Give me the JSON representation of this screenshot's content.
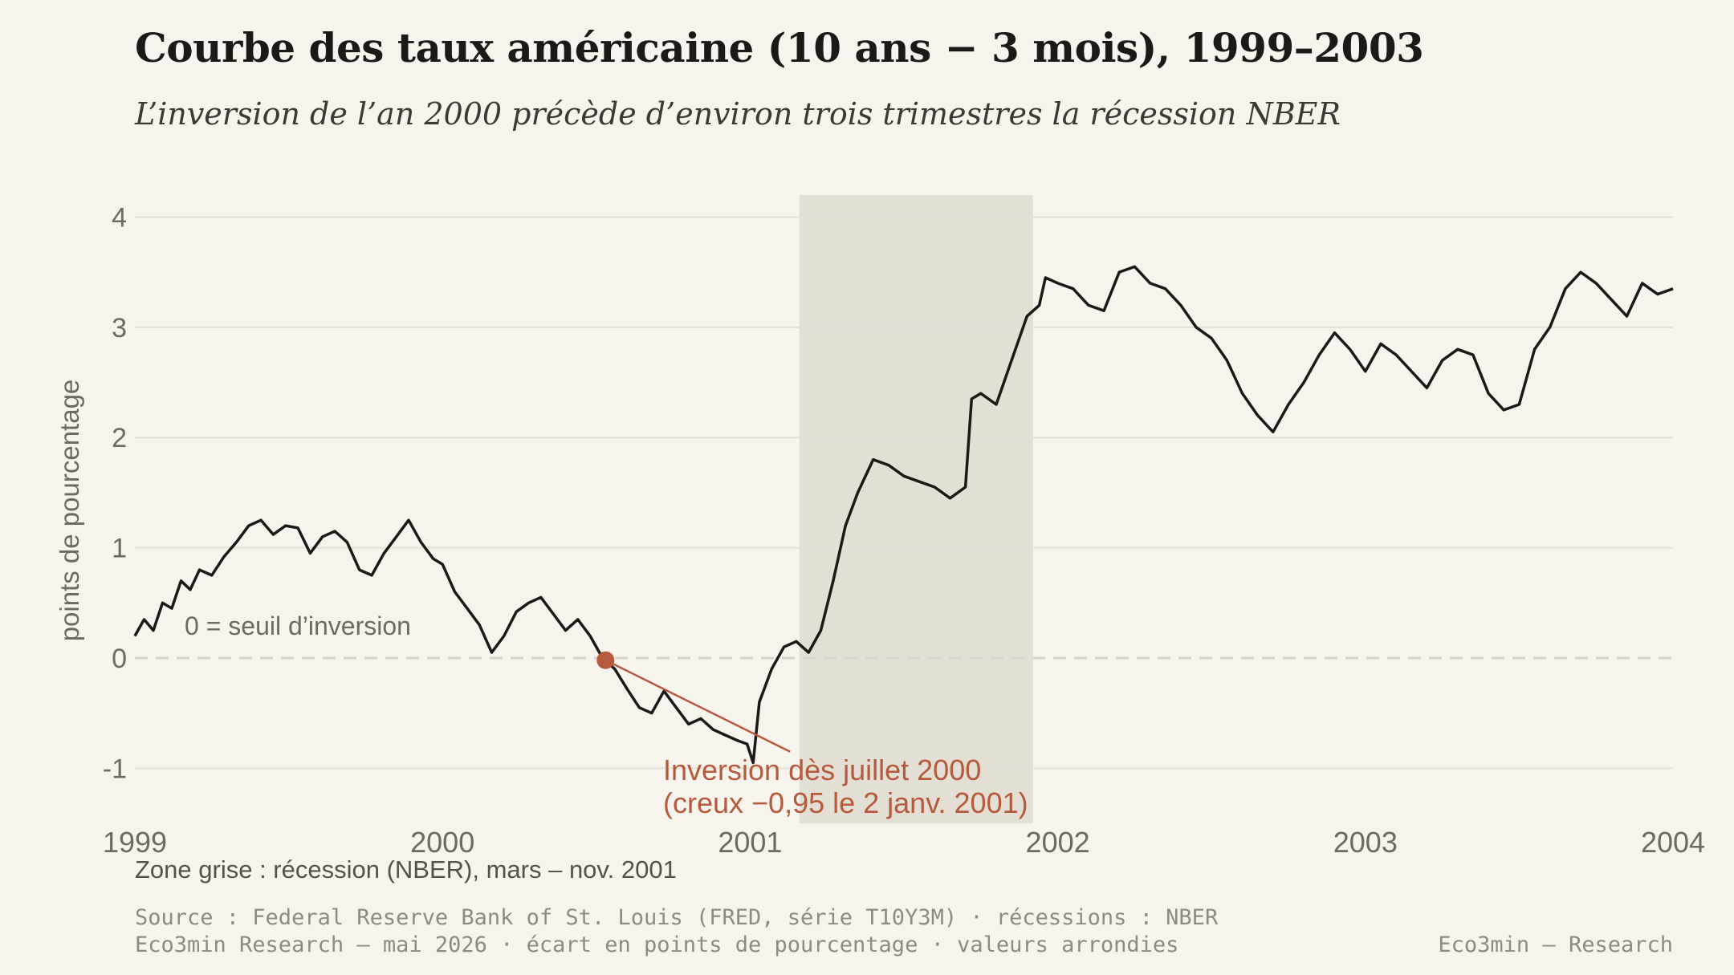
{
  "title": "Courbe des taux américaine (10 ans − 3 mois), 1999–2003",
  "subtitle": "L’inversion de l’an 2000 précède d’environ trois trimestres la récession NBER",
  "recession_note": "Zone grise : récession (NBER), mars – nov. 2001",
  "footer": {
    "source": "Source : Federal Reserve Bank of St. Louis (FRED, série T10Y3M) · récessions : NBER",
    "credits": "Eco3min Research — mai 2026 · écart en points de pourcentage · valeurs arrondies",
    "brand": "Eco3min — Research"
  },
  "colors": {
    "line": "#1b1a17",
    "accent": "#b55a3c",
    "recession": "#e3dfd4",
    "grid": "#e4e0d8",
    "axis_text": "#6e6a63"
  },
  "chart_data": {
    "type": "line",
    "ylabel": "points de pourcentage",
    "xlim": [
      1999.0,
      2004.0
    ],
    "ylim": [
      -1.5,
      4.2
    ],
    "x_ticks": [
      1999,
      2000,
      2001,
      2002,
      2003,
      2004
    ],
    "x_tick_labels": [
      "1999",
      "2000",
      "2001",
      "2002",
      "2003",
      "2004"
    ],
    "y_ticks": [
      -1,
      0,
      1,
      2,
      3,
      4
    ],
    "y_tick_labels": [
      "-1",
      "0",
      "1",
      "2",
      "3",
      "4"
    ],
    "grid": true,
    "zero_line_label": "0 = seuil d’inversion",
    "recession_band": {
      "start": 2001.16,
      "end": 2001.92
    },
    "annotation": {
      "point": {
        "x": 2000.53,
        "y": -0.02
      },
      "arrow_end": {
        "x": 2001.13,
        "y": -0.85
      },
      "line1": "Inversion dès juillet 2000",
      "line2": "(creux −0,95 le 2 janv. 2001)"
    },
    "series": [
      {
        "x": [
          1999.0,
          1999.03,
          1999.06,
          1999.09,
          1999.12,
          1999.15,
          1999.18,
          1999.21,
          1999.25,
          1999.29,
          1999.33,
          1999.37,
          1999.41,
          1999.45,
          1999.49,
          1999.53,
          1999.57,
          1999.61,
          1999.65,
          1999.69,
          1999.73,
          1999.77,
          1999.81,
          1999.85,
          1999.89,
          1999.93,
          1999.97,
          2000.0,
          2000.04,
          2000.08,
          2000.12,
          2000.16,
          2000.2,
          2000.24,
          2000.28,
          2000.32,
          2000.36,
          2000.4,
          2000.44,
          2000.48,
          2000.52,
          2000.56,
          2000.6,
          2000.64,
          2000.68,
          2000.72,
          2000.76,
          2000.8,
          2000.84,
          2000.88,
          2000.92,
          2000.96,
          2000.99,
          2001.01,
          2001.03,
          2001.07,
          2001.11,
          2001.15,
          2001.19,
          2001.23,
          2001.27,
          2001.31,
          2001.35,
          2001.4,
          2001.45,
          2001.5,
          2001.55,
          2001.6,
          2001.65,
          2001.7,
          2001.72,
          2001.75,
          2001.8,
          2001.85,
          2001.9,
          2001.94,
          2001.96,
          2002.0,
          2002.05,
          2002.1,
          2002.15,
          2002.2,
          2002.25,
          2002.3,
          2002.35,
          2002.4,
          2002.45,
          2002.5,
          2002.55,
          2002.6,
          2002.65,
          2002.7,
          2002.75,
          2002.8,
          2002.85,
          2002.9,
          2002.95,
          2003.0,
          2003.05,
          2003.1,
          2003.15,
          2003.2,
          2003.25,
          2003.3,
          2003.35,
          2003.4,
          2003.45,
          2003.5,
          2003.55,
          2003.6,
          2003.65,
          2003.7,
          2003.75,
          2003.8,
          2003.85,
          2003.9,
          2003.95,
          2004.0
        ],
        "y": [
          0.2,
          0.35,
          0.25,
          0.5,
          0.45,
          0.7,
          0.62,
          0.8,
          0.75,
          0.92,
          1.05,
          1.2,
          1.25,
          1.12,
          1.2,
          1.18,
          0.95,
          1.1,
          1.15,
          1.05,
          0.8,
          0.75,
          0.95,
          1.1,
          1.25,
          1.05,
          0.9,
          0.85,
          0.6,
          0.45,
          0.3,
          0.05,
          0.2,
          0.42,
          0.5,
          0.55,
          0.4,
          0.25,
          0.35,
          0.2,
          0.0,
          -0.1,
          -0.28,
          -0.45,
          -0.5,
          -0.3,
          -0.45,
          -0.6,
          -0.55,
          -0.65,
          -0.7,
          -0.75,
          -0.78,
          -0.95,
          -0.4,
          -0.1,
          0.1,
          0.15,
          0.05,
          0.25,
          0.7,
          1.2,
          1.5,
          1.8,
          1.75,
          1.65,
          1.6,
          1.55,
          1.45,
          1.55,
          2.35,
          2.4,
          2.3,
          2.7,
          3.1,
          3.2,
          3.45,
          3.4,
          3.35,
          3.2,
          3.15,
          3.5,
          3.55,
          3.4,
          3.35,
          3.2,
          3.0,
          2.9,
          2.7,
          2.4,
          2.2,
          2.05,
          2.3,
          2.5,
          2.75,
          2.95,
          2.8,
          2.6,
          2.85,
          2.75,
          2.6,
          2.45,
          2.7,
          2.8,
          2.75,
          2.4,
          2.25,
          2.3,
          2.8,
          3.0,
          3.35,
          3.5,
          3.4,
          3.25,
          3.1,
          3.4,
          3.3,
          3.35
        ]
      }
    ]
  }
}
